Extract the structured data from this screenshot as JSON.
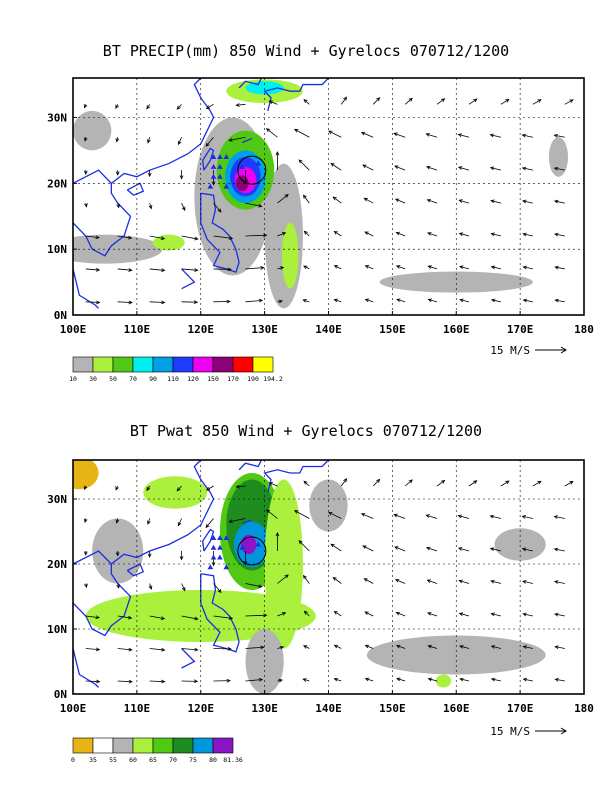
{
  "panels": [
    {
      "title": "BT PRECIP(mm) 850 Wind + Gyrelocs 070712/1200",
      "x_ticks": [
        "100E",
        "110E",
        "120E",
        "130E",
        "140E",
        "150E",
        "160E",
        "170E",
        "180"
      ],
      "y_ticks": [
        "0N",
        "10N",
        "20N",
        "30N"
      ],
      "ref_vector": "15 M/S",
      "colorbar": {
        "colors": [
          "#b4b4b4",
          "#aaf03c",
          "#50c814",
          "#00f0f0",
          "#00a0e6",
          "#1e3cff",
          "#f000f0",
          "#8c0078",
          "#ff0000",
          "#ffff00"
        ],
        "labels": [
          "10",
          "30",
          "50",
          "70",
          "90",
          "110",
          "120",
          "150",
          "170",
          "190",
          "194.2"
        ]
      }
    },
    {
      "title": "BT Pwat 850 Wind + Gyrelocs 070712/1200",
      "x_ticks": [
        "100E",
        "110E",
        "120E",
        "130E",
        "140E",
        "150E",
        "160E",
        "170E",
        "180"
      ],
      "y_ticks": [
        "0N",
        "10N",
        "20N",
        "30N"
      ],
      "ref_vector": "15 M/S",
      "colorbar": {
        "colors": [
          "#e6b414",
          "#ffffff",
          "#b4b4b4",
          "#aaf03c",
          "#50c814",
          "#1e8c1e",
          "#0096dc",
          "#8c14c8"
        ],
        "labels": [
          "0",
          "35",
          "55",
          "60",
          "65",
          "70",
          "75",
          "80",
          "81.36"
        ]
      }
    }
  ]
}
